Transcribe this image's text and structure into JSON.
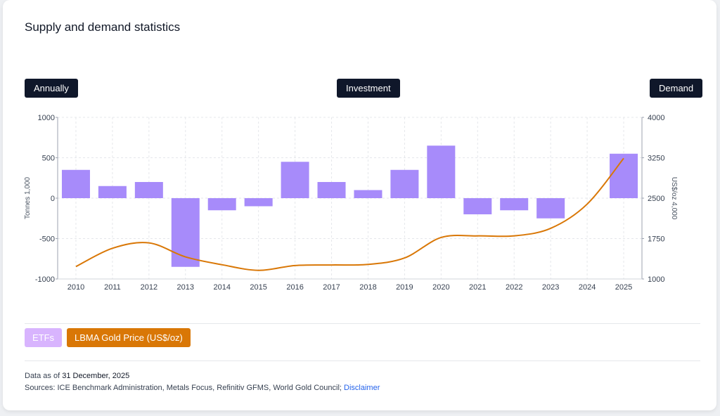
{
  "title": "Supply and demand statistics",
  "controls": {
    "period": "Annually",
    "category": "Investment",
    "type": "Demand"
  },
  "legend": {
    "etfs": "ETFs",
    "gold_price": "LBMA Gold Price (US$/oz)"
  },
  "footer": {
    "data_as_of_prefix": "Data as of",
    "data_as_of_date": "31 December, 2025",
    "sources": "Sources: ICE Benchmark Administration, Metals Focus, Refinitiv GFMS, World Gold Council;",
    "disclaimer": "Disclaimer"
  },
  "colors": {
    "bars": "#a78bfa",
    "line": "#d97706",
    "legend_etfs_bg": "#d8b4fe",
    "legend_price_bg": "#d97706"
  },
  "chart_data": {
    "type": "bar",
    "categories": [
      "2010",
      "2011",
      "2012",
      "2013",
      "2014",
      "2015",
      "2016",
      "2017",
      "2018",
      "2019",
      "2020",
      "2021",
      "2022",
      "2023",
      "2024",
      "2025"
    ],
    "series": [
      {
        "name": "ETFs",
        "axis": "left",
        "values": [
          350,
          150,
          200,
          -850,
          -150,
          -100,
          450,
          200,
          100,
          350,
          650,
          -200,
          -150,
          -250,
          null,
          550
        ]
      },
      {
        "name": "LBMA Gold Price (US$/oz)",
        "axis": "right",
        "type": "line",
        "values": [
          1230,
          1570,
          1670,
          1410,
          1265,
          1160,
          1250,
          1260,
          1270,
          1390,
          1770,
          1800,
          1800,
          1940,
          2390,
          3240
        ]
      }
    ],
    "ylabel": "Tonnes 1,000",
    "y2label": "US$/oz 4,000",
    "ylim": [
      -1000,
      1000
    ],
    "y2lim": [
      1000,
      4000
    ],
    "yticks": [
      "1000",
      "500",
      "0",
      "-500",
      "-1000"
    ],
    "y2ticks": [
      "4000",
      "3250",
      "2500",
      "1750",
      "1000"
    ],
    "grid": true
  }
}
